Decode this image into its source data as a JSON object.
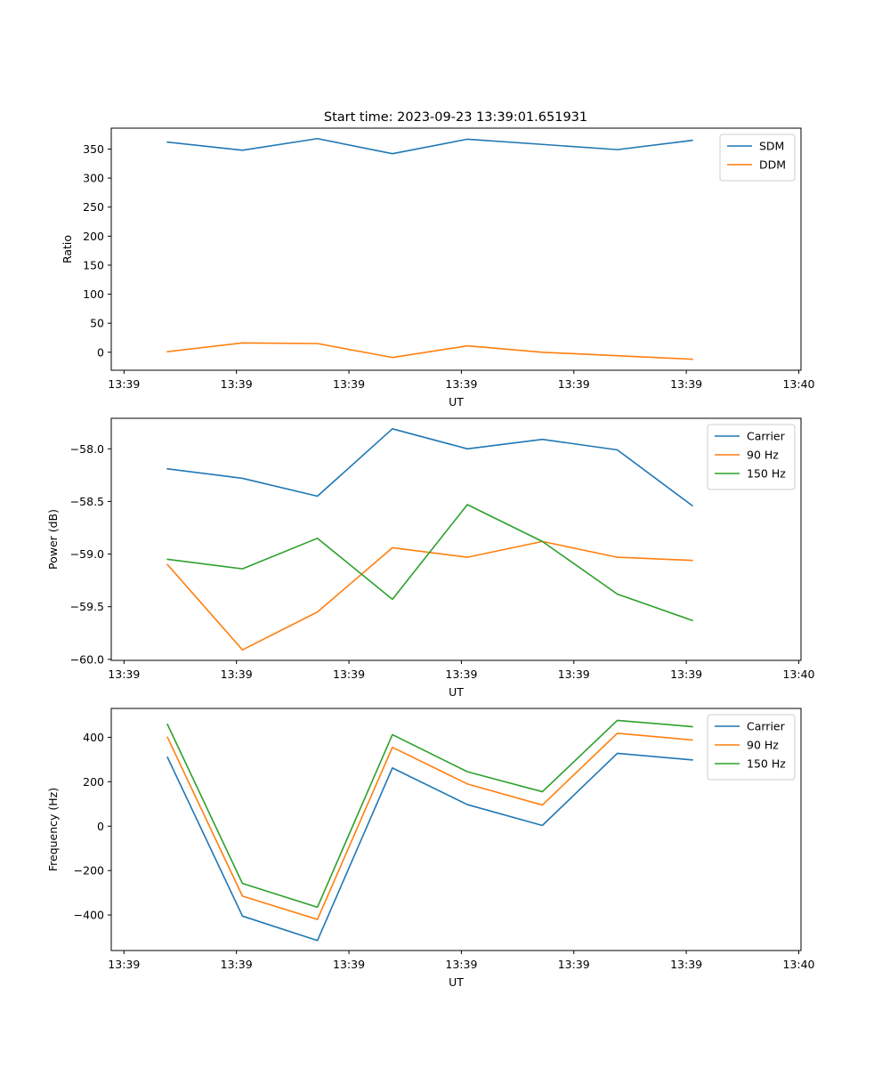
{
  "figure": {
    "title": "Start time: 2023-09-23 13:39:01.651931"
  },
  "colors": {
    "blue": "#1f77b4",
    "orange": "#ff7f0e",
    "green": "#2ca02c"
  },
  "chart_data": [
    {
      "type": "line",
      "name": "ratio",
      "xlabel": "UT",
      "ylabel": "Ratio",
      "x": [
        0,
        1,
        2,
        3,
        4,
        5,
        6,
        7
      ],
      "xlim": [
        -0.75,
        8.45
      ],
      "xticks": [
        -0.58,
        0.92,
        2.42,
        3.92,
        5.42,
        6.92,
        8.42
      ],
      "xtick_labels": [
        "13:39",
        "13:39",
        "13:39",
        "13:39",
        "13:39",
        "13:39",
        "13:40"
      ],
      "ylim": [
        -31,
        386
      ],
      "yticks": [
        0,
        50,
        100,
        150,
        200,
        250,
        300,
        350
      ],
      "ytick_labels": [
        "0",
        "50",
        "100",
        "150",
        "200",
        "250",
        "300",
        "350"
      ],
      "legend": "top-right",
      "series": [
        {
          "name": "SDM",
          "color": "blue",
          "values": [
            362,
            348,
            368,
            342,
            367,
            358,
            349,
            365
          ]
        },
        {
          "name": "DDM",
          "color": "orange",
          "values": [
            1,
            16,
            15,
            -9,
            11,
            0,
            -6,
            -12
          ]
        }
      ]
    },
    {
      "type": "line",
      "name": "power",
      "xlabel": "UT",
      "ylabel": "Power (dB)",
      "x": [
        0,
        1,
        2,
        3,
        4,
        5,
        6,
        7
      ],
      "xlim": [
        -0.75,
        8.45
      ],
      "xticks": [
        -0.58,
        0.92,
        2.42,
        3.92,
        5.42,
        6.92,
        8.42
      ],
      "xtick_labels": [
        "13:39",
        "13:39",
        "13:39",
        "13:39",
        "13:39",
        "13:39",
        "13:40"
      ],
      "ylim": [
        -60.01,
        -57.71
      ],
      "yticks": [
        -60.0,
        -59.5,
        -59.0,
        -58.5,
        -58.0
      ],
      "ytick_labels": [
        "−60.0",
        "−59.5",
        "−59.0",
        "−58.5",
        "−58.0"
      ],
      "legend": "top-right",
      "series": [
        {
          "name": "Carrier",
          "color": "blue",
          "values": [
            -58.19,
            -58.28,
            -58.45,
            -57.81,
            -58.0,
            -57.91,
            -58.01,
            -58.54
          ]
        },
        {
          "name": "90 Hz",
          "color": "orange",
          "values": [
            -59.1,
            -59.91,
            -59.55,
            -58.94,
            -59.03,
            -58.88,
            -59.03,
            -59.06
          ]
        },
        {
          "name": "150 Hz",
          "color": "green",
          "values": [
            -59.05,
            -59.14,
            -58.85,
            -59.43,
            -58.53,
            -58.88,
            -59.38,
            -59.63
          ]
        }
      ]
    },
    {
      "type": "line",
      "name": "frequency",
      "xlabel": "UT",
      "ylabel": "Frequency (Hz)",
      "x": [
        0,
        1,
        2,
        3,
        4,
        5,
        6,
        7
      ],
      "xlim": [
        -0.75,
        8.45
      ],
      "xticks": [
        -0.58,
        0.92,
        2.42,
        3.92,
        5.42,
        6.92,
        8.42
      ],
      "xtick_labels": [
        "13:39",
        "13:39",
        "13:39",
        "13:39",
        "13:39",
        "13:39",
        "13:40"
      ],
      "ylim": [
        -560,
        530
      ],
      "yticks": [
        -400,
        -200,
        0,
        200,
        400
      ],
      "ytick_labels": [
        "−400",
        "−200",
        "0",
        "200",
        "400"
      ],
      "legend": "top-right",
      "series": [
        {
          "name": "Carrier",
          "color": "blue",
          "values": [
            310,
            -405,
            -515,
            262,
            97,
            3,
            328,
            298
          ]
        },
        {
          "name": "90 Hz",
          "color": "orange",
          "values": [
            400,
            -315,
            -420,
            355,
            190,
            95,
            418,
            388
          ]
        },
        {
          "name": "150 Hz",
          "color": "green",
          "values": [
            458,
            -258,
            -365,
            412,
            245,
            155,
            476,
            448
          ]
        }
      ]
    }
  ]
}
